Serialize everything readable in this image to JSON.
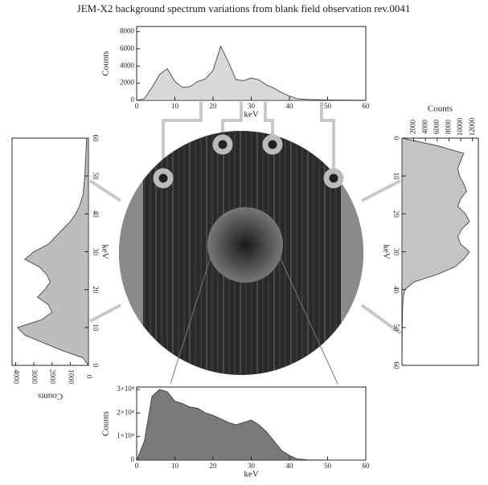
{
  "title": "JEM-X2 background spectrum variations from blank field observation rev.0041",
  "chart_data": [
    {
      "type": "area",
      "xlabel": "keV",
      "ylabel": "Counts",
      "color": "#d8d8d8",
      "x": [
        0,
        2,
        4,
        6,
        8,
        10,
        12,
        14,
        16,
        18,
        20,
        22,
        24,
        26,
        28,
        30,
        32,
        34,
        36,
        38,
        40,
        42,
        45,
        50,
        55,
        60
      ],
      "values": [
        0,
        200,
        1500,
        3000,
        3700,
        2200,
        1500,
        1600,
        2200,
        2500,
        3500,
        6300,
        4500,
        2400,
        2300,
        2600,
        2400,
        1800,
        1400,
        900,
        500,
        200,
        100,
        50,
        30,
        20
      ],
      "xlim": [
        0,
        60
      ],
      "xticks": [
        0,
        10,
        20,
        30,
        40,
        50,
        60
      ],
      "ylim": [
        0,
        8600
      ],
      "yticks": [
        0,
        2000,
        4000,
        6000,
        8000
      ]
    },
    {
      "type": "area",
      "xlabel": "keV",
      "ylabel": "Counts",
      "color": "#bdbdbd",
      "x": [
        0,
        2,
        4,
        6,
        8,
        10,
        12,
        14,
        16,
        18,
        20,
        22,
        24,
        26,
        28,
        30,
        32,
        34,
        36,
        38,
        40,
        42,
        45,
        50,
        55,
        60
      ],
      "values": [
        0,
        300,
        1500,
        2500,
        3500,
        3900,
        2600,
        2000,
        2200,
        2800,
        2400,
        2100,
        2300,
        2700,
        3500,
        3000,
        2200,
        1800,
        1400,
        1000,
        700,
        500,
        300,
        200,
        150,
        100
      ],
      "xlim": [
        0,
        60
      ],
      "xticks": [
        0,
        10,
        20,
        30,
        40,
        50,
        60
      ],
      "ylim": [
        0,
        4200
      ],
      "yticks": [
        0,
        1000,
        2000,
        3000,
        4000
      ]
    },
    {
      "type": "area",
      "xlabel": "keV",
      "ylabel": "Counts",
      "color": "#c4c4c4",
      "x": [
        0,
        2,
        4,
        6,
        8,
        10,
        12,
        14,
        16,
        18,
        20,
        22,
        24,
        26,
        28,
        30,
        32,
        34,
        36,
        38,
        40,
        42,
        45,
        50,
        55,
        60
      ],
      "values": [
        0,
        6000,
        10500,
        10000,
        9500,
        9800,
        10500,
        11000,
        10000,
        9500,
        10800,
        11500,
        10200,
        9500,
        10000,
        11500,
        10500,
        9000,
        6000,
        2000,
        500,
        200,
        100,
        50,
        30,
        20
      ],
      "xlim": [
        0,
        60
      ],
      "xticks": [
        0,
        10,
        20,
        30,
        40,
        50,
        60
      ],
      "ylim": [
        0,
        13000
      ],
      "yticks": [
        2000,
        4000,
        6000,
        8000,
        10000,
        12000
      ]
    },
    {
      "type": "area",
      "xlabel": "keV",
      "ylabel": "Counts",
      "color": "#7a7a7a",
      "x": [
        0,
        2,
        4,
        6,
        8,
        10,
        12,
        14,
        16,
        18,
        20,
        22,
        24,
        26,
        28,
        30,
        32,
        34,
        36,
        38,
        40,
        42,
        45,
        50,
        55,
        60
      ],
      "values": [
        0,
        8000,
        27000,
        30000,
        29000,
        25000,
        24000,
        22500,
        22000,
        20000,
        19000,
        17500,
        16000,
        15000,
        16000,
        17000,
        15000,
        12000,
        8000,
        4000,
        2000,
        500,
        100,
        50,
        20,
        10
      ],
      "xlim": [
        0,
        60
      ],
      "xticks": [
        0,
        10,
        20,
        30,
        40,
        50,
        60
      ],
      "ylim": [
        0,
        31000
      ],
      "yticks": [
        0,
        {
          "value": 10000,
          "label": "1×10⁴"
        },
        {
          "value": 20000,
          "label": "2×10⁴"
        },
        {
          "value": 30000,
          "label": "3×10⁴"
        }
      ]
    }
  ]
}
